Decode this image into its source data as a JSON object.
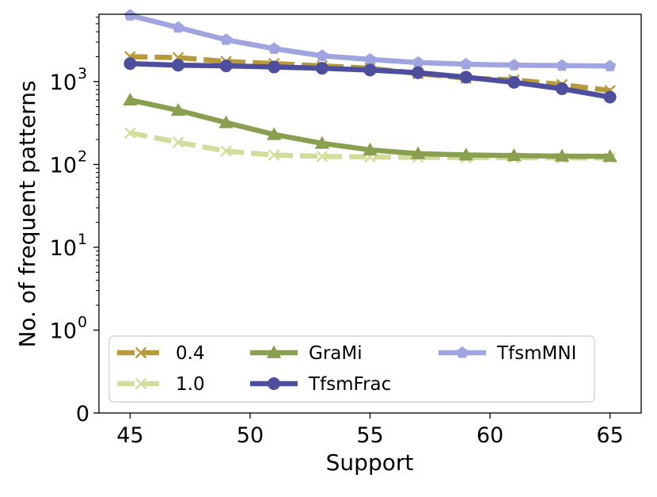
{
  "chart_data": {
    "type": "line",
    "xlabel": "Support",
    "ylabel": "No. of frequent patterns",
    "yscale": "symlog",
    "xlim": [
      43.7,
      66.3
    ],
    "ylim": [
      0,
      6500
    ],
    "x_ticks": [
      45,
      50,
      55,
      60,
      65
    ],
    "x_tick_labels": [
      "45",
      "50",
      "55",
      "60",
      "65"
    ],
    "y_ticks": [
      {
        "value": 0,
        "base": "0",
        "exp": ""
      },
      {
        "value": 1,
        "base": "10",
        "exp": "0"
      },
      {
        "value": 10,
        "base": "10",
        "exp": "1"
      },
      {
        "value": 100,
        "base": "10",
        "exp": "2"
      },
      {
        "value": 1000,
        "base": "10",
        "exp": "3"
      }
    ],
    "x": [
      45,
      47,
      49,
      51,
      53,
      55,
      57,
      59,
      61,
      63,
      65
    ],
    "series": [
      {
        "name": "0.4",
        "color": "#b89a3a",
        "dash": true,
        "marker": "x",
        "values": [
          2000,
          1950,
          1750,
          1650,
          1550,
          1450,
          1250,
          1100,
          1050,
          920,
          780
        ]
      },
      {
        "name": "1.0",
        "color": "#d4dc9c",
        "dash": true,
        "marker": "x",
        "values": [
          240,
          185,
          145,
          130,
          125,
          123,
          122,
          121,
          121,
          120,
          120
        ]
      },
      {
        "name": "GraMi",
        "color": "#8aa050",
        "dash": false,
        "marker": "triangle",
        "values": [
          600,
          450,
          320,
          230,
          180,
          150,
          135,
          130,
          128,
          126,
          125
        ]
      },
      {
        "name": "TfsmFrac",
        "color": "#4e4e9e",
        "dash": false,
        "marker": "circle",
        "values": [
          1650,
          1580,
          1550,
          1500,
          1450,
          1380,
          1280,
          1130,
          980,
          820,
          650
        ]
      },
      {
        "name": "TfsmMNI",
        "color": "#a0a4e0",
        "dash": false,
        "marker": "pentagon",
        "values": [
          6300,
          4500,
          3200,
          2500,
          2050,
          1850,
          1700,
          1620,
          1580,
          1560,
          1540
        ]
      }
    ],
    "legend": {
      "location": "lower-left",
      "columns": 3,
      "order": [
        "0.4",
        "1.0",
        "GraMi",
        "TfsmFrac",
        "TfsmMNI"
      ]
    }
  }
}
